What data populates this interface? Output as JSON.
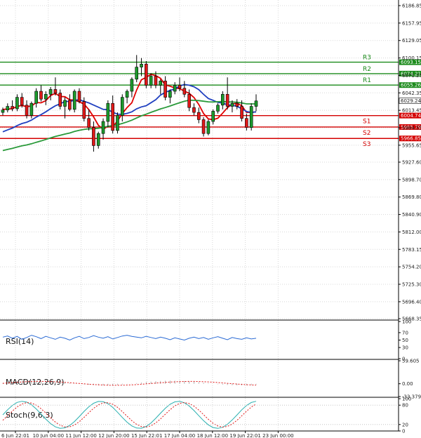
{
  "chart_data": {
    "type": "candlestick",
    "price_axis": {
      "ticks": [
        "6186.85",
        "6157.95",
        "6129.05",
        "6100.15",
        "6071.25",
        "6042.35",
        "6013.45",
        "5984.55",
        "5955.65",
        "5927.60",
        "5898.70",
        "5869.80",
        "5840.90",
        "5812.00",
        "5783.15",
        "5754.20",
        "5725.30",
        "5696.40",
        "5668.35"
      ],
      "range": [
        5668.35,
        6186.85
      ]
    },
    "time_axis": {
      "labels": [
        "6 Jun 22:01",
        "10 Jun 04:00",
        "11 Jun 12:00",
        "12 Jun 20:00",
        "15 Jun 22:01",
        "17 Jun 04:00",
        "18 Jun 12:00",
        "19 Jun 22:01",
        "23 Jun 00:00"
      ]
    },
    "levels": [
      {
        "name": "R3",
        "value": 6093.15,
        "label": "6093.15",
        "color": "#1a8a1a"
      },
      {
        "name": "R2",
        "value": 6074.21,
        "label": "6074.21",
        "color": "#1a8a1a"
      },
      {
        "name": "R1",
        "value": 6055.26,
        "label": "6055.26",
        "color": "#1a8a1a"
      },
      {
        "name": "S1",
        "value": 6004.74,
        "label": "6004.74",
        "color": "#d40000"
      },
      {
        "name": "S2",
        "value": 5985.79,
        "label": "5985.79",
        "color": "#d40000"
      },
      {
        "name": "S3",
        "value": 5966.85,
        "label": "5966.85",
        "color": "#d40000"
      }
    ],
    "current_price": {
      "value": 6029.24,
      "label": "6029.24"
    },
    "candles": [
      [
        6010,
        6018,
        6005,
        6014
      ],
      [
        6014,
        6025,
        6010,
        6020
      ],
      [
        6020,
        6030,
        6012,
        6016
      ],
      [
        6016,
        6040,
        6012,
        6035
      ],
      [
        6035,
        6042,
        6018,
        6022
      ],
      [
        6022,
        6030,
        6000,
        6005
      ],
      [
        6005,
        6028,
        6000,
        6025
      ],
      [
        6025,
        6050,
        6018,
        6045
      ],
      [
        6045,
        6055,
        6028,
        6032
      ],
      [
        6032,
        6045,
        6022,
        6040
      ],
      [
        6040,
        6052,
        6030,
        6048
      ],
      [
        6048,
        6068,
        6038,
        6042
      ],
      [
        6042,
        6048,
        6015,
        6020
      ],
      [
        6020,
        6035,
        6000,
        6030
      ],
      [
        6030,
        6040,
        6012,
        6015
      ],
      [
        6015,
        6048,
        6010,
        6045
      ],
      [
        6045,
        6050,
        6025,
        6028
      ],
      [
        6028,
        6035,
        5995,
        6000
      ],
      [
        6000,
        6015,
        5980,
        5985
      ],
      [
        5985,
        5995,
        5945,
        5955
      ],
      [
        5955,
        5978,
        5950,
        5975
      ],
      [
        5975,
        6000,
        5965,
        5995
      ],
      [
        5995,
        6030,
        5985,
        6025
      ],
      [
        6025,
        6038,
        5975,
        5980
      ],
      [
        5980,
        6010,
        5975,
        6005
      ],
      [
        6005,
        6040,
        5995,
        6035
      ],
      [
        6035,
        6048,
        6025,
        6045
      ],
      [
        6045,
        6068,
        6035,
        6065
      ],
      [
        6065,
        6105,
        6060,
        6085
      ],
      [
        6085,
        6100,
        6070,
        6090
      ],
      [
        6090,
        6095,
        6050,
        6055
      ],
      [
        6055,
        6075,
        6050,
        6070
      ],
      [
        6070,
        6078,
        6050,
        6055
      ],
      [
        6055,
        6065,
        6040,
        6062
      ],
      [
        6062,
        6070,
        6030,
        6035
      ],
      [
        6035,
        6048,
        6025,
        6045
      ],
      [
        6045,
        6060,
        6040,
        6055
      ],
      [
        6055,
        6068,
        6045,
        6050
      ],
      [
        6050,
        6062,
        6035,
        6040
      ],
      [
        6040,
        6048,
        6012,
        6018
      ],
      [
        6018,
        6025,
        6005,
        6010
      ],
      [
        6010,
        6018,
        5992,
        5998
      ],
      [
        5998,
        6002,
        5970,
        5975
      ],
      [
        5975,
        5998,
        5972,
        5995
      ],
      [
        5995,
        6015,
        5990,
        6012
      ],
      [
        6012,
        6025,
        6008,
        6022
      ],
      [
        6022,
        6045,
        6015,
        6040
      ],
      [
        6040,
        6068,
        6015,
        6020
      ],
      [
        6020,
        6030,
        6010,
        6025
      ],
      [
        6025,
        6032,
        6015,
        6020
      ],
      [
        6020,
        6030,
        5995,
        6000
      ],
      [
        6000,
        6008,
        5980,
        5985
      ],
      [
        5985,
        6025,
        5980,
        6020
      ],
      [
        6020,
        6040,
        6012,
        6029
      ]
    ],
    "moving_averages": [
      {
        "name": "MA fast",
        "color": "#e00000"
      },
      {
        "name": "MA medium",
        "color": "#2040c0"
      },
      {
        "name": "MA slow",
        "color": "#2a9a3a"
      }
    ],
    "indicators": [
      {
        "name": "RSI(14)",
        "ticks": [
          "100",
          "70",
          "50",
          "30",
          "0"
        ]
      },
      {
        "name": "MACD(12,26,9)",
        "ticks": [
          "59.605",
          "0.00",
          "-33.379"
        ]
      },
      {
        "name": "Stoch(9,6,3)",
        "ticks": [
          "100",
          "80",
          "20",
          "0"
        ]
      }
    ]
  }
}
